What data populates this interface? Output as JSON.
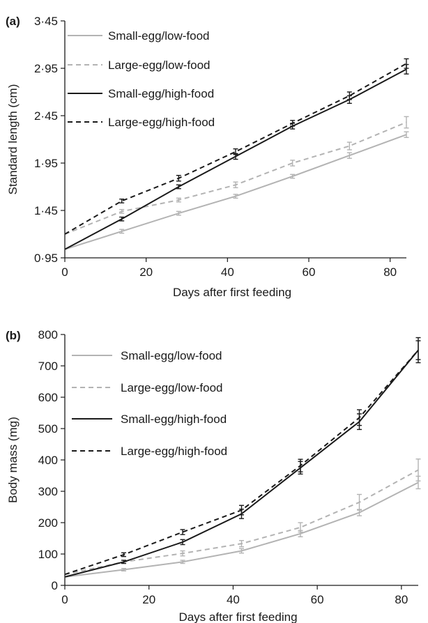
{
  "chart_data": [
    {
      "type": "line",
      "panel_label": "(a)",
      "xlabel": "Days after first feeding",
      "ylabel": "Standard length  (cm)",
      "xlim": [
        0,
        84
      ],
      "ylim": [
        0.95,
        3.45
      ],
      "x_ticks": [
        "0",
        "20",
        "40",
        "60",
        "80"
      ],
      "x_tick_values": [
        0,
        20,
        40,
        60,
        80
      ],
      "y_ticks": [
        "0·95",
        "1·45",
        "1·95",
        "2·45",
        "2·95",
        "3·45"
      ],
      "y_tick_values": [
        0.95,
        1.45,
        1.95,
        2.45,
        2.95,
        3.45
      ],
      "grid": false,
      "legend_position": "top-left",
      "x": [
        0,
        14,
        28,
        42,
        56,
        70,
        84
      ],
      "series": [
        {
          "name": "Small-egg/low-food",
          "color": "#b3b3b3",
          "dash": "solid",
          "values": [
            1.04,
            1.23,
            1.42,
            1.6,
            1.81,
            2.03,
            2.25
          ],
          "errors": [
            0.01,
            0.02,
            0.02,
            0.02,
            0.02,
            0.03,
            0.03
          ]
        },
        {
          "name": "Large-egg/low-food",
          "color": "#b3b3b3",
          "dash": "dashed",
          "values": [
            1.2,
            1.44,
            1.56,
            1.72,
            1.95,
            2.13,
            2.38
          ],
          "errors": [
            0.02,
            0.02,
            0.02,
            0.03,
            0.03,
            0.04,
            0.06
          ]
        },
        {
          "name": "Small-egg/high-food",
          "color": "#1a1a1a",
          "dash": "solid",
          "values": [
            1.04,
            1.36,
            1.7,
            2.02,
            2.34,
            2.62,
            2.94
          ],
          "errors": [
            0.01,
            0.02,
            0.02,
            0.03,
            0.03,
            0.04,
            0.05
          ]
        },
        {
          "name": "Large-egg/high-food",
          "color": "#1a1a1a",
          "dash": "dashed",
          "values": [
            1.2,
            1.55,
            1.79,
            2.07,
            2.37,
            2.66,
            3.0
          ],
          "errors": [
            0.02,
            0.02,
            0.03,
            0.03,
            0.03,
            0.04,
            0.05
          ]
        }
      ]
    },
    {
      "type": "line",
      "panel_label": "(b)",
      "xlabel": "Days after first feeding",
      "ylabel": "Body mass  (mg)",
      "xlim": [
        0,
        84
      ],
      "ylim": [
        0,
        800
      ],
      "x_ticks": [
        "0",
        "20",
        "40",
        "60",
        "80"
      ],
      "x_tick_values": [
        0,
        20,
        40,
        60,
        80
      ],
      "y_ticks": [
        "0",
        "100",
        "200",
        "300",
        "400",
        "500",
        "600",
        "700",
        "800"
      ],
      "y_tick_values": [
        0,
        100,
        200,
        300,
        400,
        500,
        600,
        700,
        800
      ],
      "grid": false,
      "legend_position": "top-left",
      "x": [
        0,
        14,
        28,
        42,
        56,
        70,
        84
      ],
      "series": [
        {
          "name": "Small-egg/low-food",
          "color": "#b3b3b3",
          "dash": "solid",
          "values": [
            27,
            50,
            75,
            110,
            165,
            232,
            328
          ],
          "errors": [
            2,
            4,
            5,
            7,
            10,
            10,
            20
          ]
        },
        {
          "name": "Large-egg/low-food",
          "color": "#b3b3b3",
          "dash": "dashed",
          "values": [
            35,
            75,
            102,
            133,
            185,
            265,
            368
          ],
          "errors": [
            3,
            5,
            8,
            10,
            15,
            25,
            35
          ]
        },
        {
          "name": "Small-egg/high-food",
          "color": "#1a1a1a",
          "dash": "solid",
          "values": [
            27,
            75,
            138,
            228,
            375,
            522,
            750
          ],
          "errors": [
            2,
            5,
            8,
            15,
            20,
            25,
            30
          ]
        },
        {
          "name": "Large-egg/high-food",
          "color": "#1a1a1a",
          "dash": "dashed",
          "values": [
            35,
            98,
            170,
            240,
            382,
            535,
            750
          ],
          "errors": [
            3,
            6,
            8,
            15,
            20,
            25,
            40
          ]
        }
      ]
    }
  ]
}
